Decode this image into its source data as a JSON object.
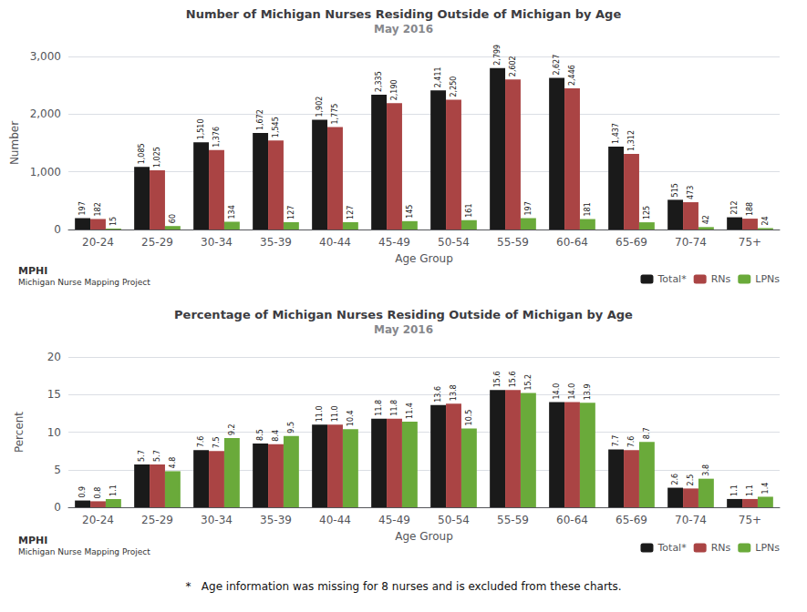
{
  "chart_data": [
    {
      "type": "bar",
      "title": "Number of Michigan Nurses Residing Outside of Michigan by Age",
      "subtitle": "May 2016",
      "x_label": "Age Group",
      "y_label": "Number",
      "categories": [
        "20-24",
        "25-29",
        "30-34",
        "35-39",
        "40-44",
        "45-49",
        "50-54",
        "55-59",
        "60-64",
        "65-69",
        "70-74",
        "75+"
      ],
      "series": [
        {
          "name": "Total*",
          "color": "#1a1a1a",
          "values": [
            197,
            1085,
            1510,
            1672,
            1902,
            2335,
            2411,
            2799,
            2627,
            1437,
            515,
            212
          ],
          "value_labels": [
            "197",
            "1,085",
            "1,510",
            "1,672",
            "1,902",
            "2,335",
            "2,411",
            "2,799",
            "2,627",
            "1,437",
            "515",
            "212"
          ]
        },
        {
          "name": "RNs",
          "color": "#aa4444",
          "values": [
            182,
            1025,
            1376,
            1545,
            1775,
            2190,
            2250,
            2602,
            2446,
            1312,
            473,
            188
          ],
          "value_labels": [
            "182",
            "1,025",
            "1,376",
            "1,545",
            "1,775",
            "2,190",
            "2,250",
            "2,602",
            "2,446",
            "1,312",
            "473",
            "188"
          ]
        },
        {
          "name": "LPNs",
          "color": "#6aaa3a",
          "values": [
            15,
            60,
            134,
            127,
            127,
            145,
            161,
            197,
            181,
            125,
            42,
            24
          ],
          "value_labels": [
            "15",
            "60",
            "134",
            "127",
            "127",
            "145",
            "161",
            "197",
            "181",
            "125",
            "42",
            "24"
          ]
        }
      ],
      "ylim": [
        0,
        3000
      ],
      "yticks": [
        0,
        {
          "value": 1000,
          "label": "1,000"
        },
        {
          "value": 2000,
          "label": "2,000"
        },
        {
          "value": 3000,
          "label": "3,000"
        }
      ],
      "grid": true,
      "legend": "bottom right",
      "data_labels": true,
      "annotations": [
        "MPHI",
        "Michigan Nurse Mapping Project"
      ]
    },
    {
      "type": "bar",
      "title": "Percentage of Michigan Nurses Residing Outside of Michigan by Age",
      "subtitle": "May 2016",
      "x_label": "Age Group",
      "y_label": "Percent",
      "categories": [
        "20-24",
        "25-29",
        "30-34",
        "35-39",
        "40-44",
        "45-49",
        "50-54",
        "55-59",
        "60-64",
        "65-69",
        "70-74",
        "75+"
      ],
      "series": [
        {
          "name": "Total*",
          "color": "#1a1a1a",
          "values": [
            0.9,
            5.7,
            7.6,
            8.5,
            11.0,
            11.8,
            13.6,
            15.6,
            14.0,
            7.7,
            2.6,
            1.1
          ],
          "value_labels": [
            "0.9",
            "5.7",
            "7.6",
            "8.5",
            "11.0",
            "11.8",
            "13.6",
            "15.6",
            "14.0",
            "7.7",
            "2.6",
            "1.1"
          ]
        },
        {
          "name": "RNs",
          "color": "#aa4444",
          "values": [
            0.8,
            5.7,
            7.5,
            8.4,
            11.0,
            11.8,
            13.8,
            15.6,
            14.0,
            7.6,
            2.5,
            1.1
          ],
          "value_labels": [
            "0.8",
            "5.7",
            "7.5",
            "8.4",
            "11.0",
            "11.8",
            "13.8",
            "15.6",
            "14.0",
            "7.6",
            "2.5",
            "1.1"
          ]
        },
        {
          "name": "LPNs",
          "color": "#6aaa3a",
          "values": [
            1.1,
            4.8,
            9.2,
            9.5,
            10.4,
            11.4,
            10.5,
            15.2,
            13.9,
            8.7,
            3.8,
            1.4
          ],
          "value_labels": [
            "1.1",
            "4.8",
            "9.2",
            "9.5",
            "10.4",
            "11.4",
            "10.5",
            "15.2",
            "13.9",
            "8.7",
            "3.8",
            "1.4"
          ]
        }
      ],
      "ylim": [
        0,
        20
      ],
      "yticks": [
        0,
        5,
        10,
        15,
        20
      ],
      "grid": true,
      "legend": "bottom right",
      "data_labels": true,
      "annotations": [
        "MPHI",
        "Michigan Nurse Mapping Project"
      ],
      "footnote": "*   Age information was missing for 8 nurses and is excluded from these charts."
    }
  ]
}
